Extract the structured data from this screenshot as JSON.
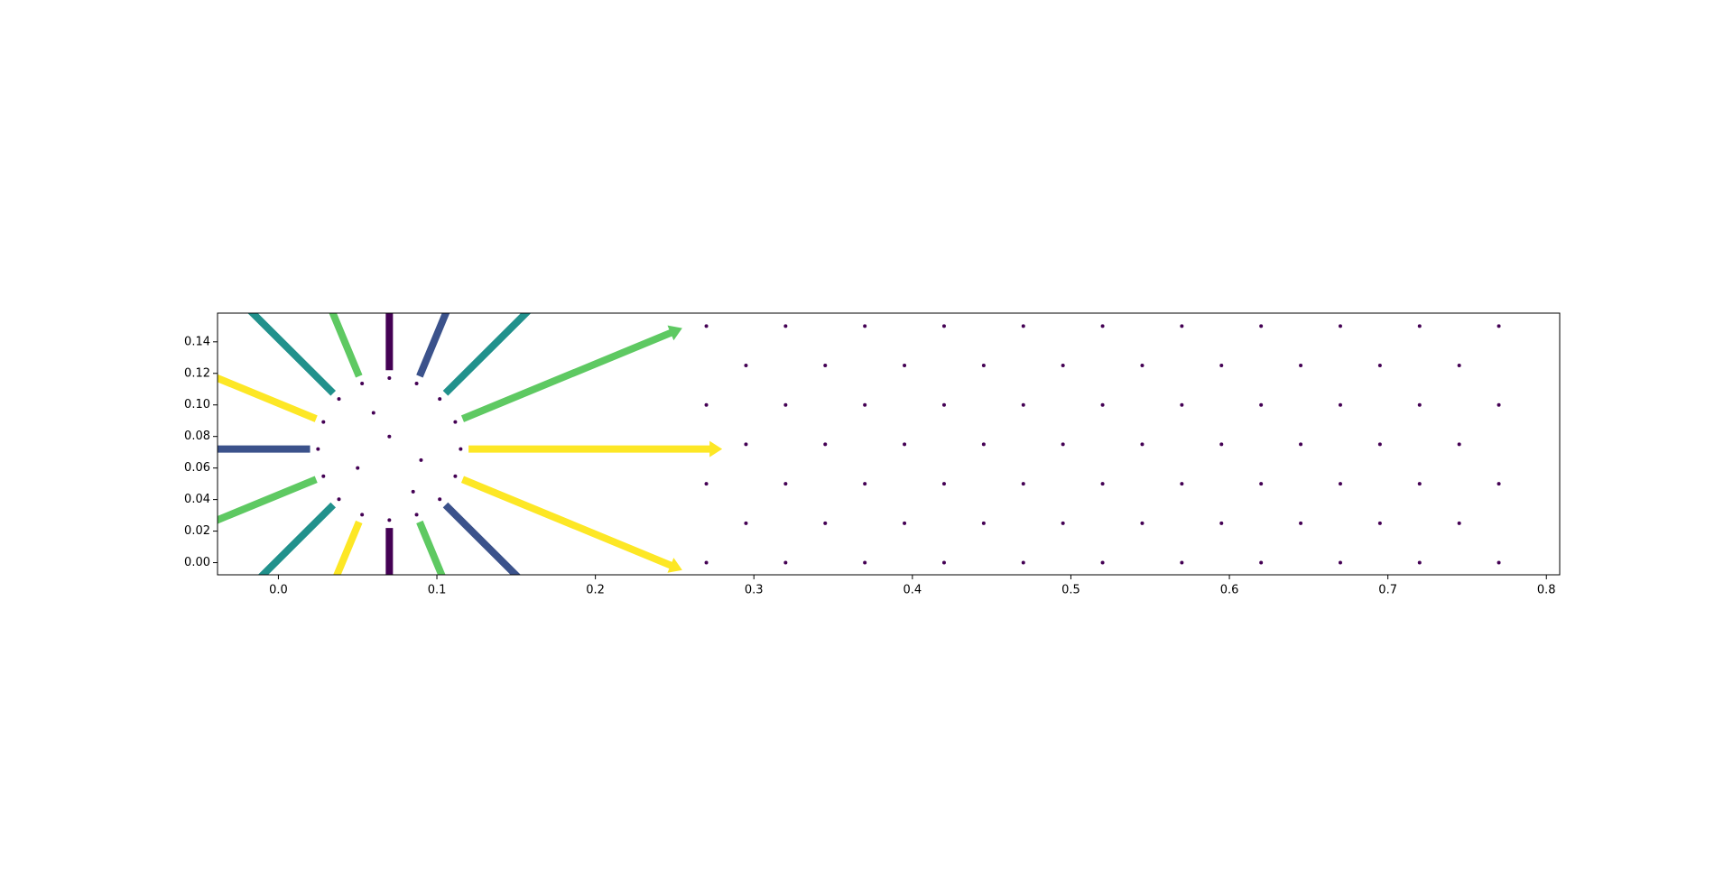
{
  "chart_data": {
    "type": "scatter",
    "color": "#440154",
    "x": [
      0.27,
      0.32,
      0.37,
      0.42,
      0.47,
      0.52,
      0.57,
      0.62,
      0.67,
      0.72,
      0.77,
      0.295,
      0.345,
      0.395,
      0.445,
      0.495,
      0.545,
      0.595,
      0.645,
      0.695,
      0.745,
      0.27,
      0.32,
      0.37,
      0.42,
      0.47,
      0.52,
      0.57,
      0.62,
      0.67,
      0.72,
      0.77,
      0.295,
      0.345,
      0.395,
      0.445,
      0.495,
      0.545,
      0.595,
      0.645,
      0.695,
      0.745,
      0.27,
      0.32,
      0.37,
      0.42,
      0.47,
      0.52,
      0.57,
      0.62,
      0.67,
      0.72,
      0.77,
      0.295,
      0.345,
      0.395,
      0.445,
      0.495,
      0.545,
      0.595,
      0.645,
      0.695,
      0.745,
      0.27,
      0.32,
      0.37,
      0.42,
      0.47,
      0.52,
      0.57,
      0.62,
      0.67,
      0.72,
      0.77,
      0.115,
      0.1116,
      0.1018,
      0.0872,
      0.07,
      0.0528,
      0.0382,
      0.0284,
      0.025,
      0.0284,
      0.0382,
      0.0528,
      0.07,
      0.0872,
      0.1018,
      0.1116,
      0.05,
      0.07,
      0.09,
      0.06,
      0.085
    ],
    "y": [
      0,
      0,
      0,
      0,
      0,
      0,
      0,
      0,
      0,
      0,
      0,
      0.025,
      0.025,
      0.025,
      0.025,
      0.025,
      0.025,
      0.025,
      0.025,
      0.025,
      0.025,
      0.05,
      0.05,
      0.05,
      0.05,
      0.05,
      0.05,
      0.05,
      0.05,
      0.05,
      0.05,
      0.05,
      0.075,
      0.075,
      0.075,
      0.075,
      0.075,
      0.075,
      0.075,
      0.075,
      0.075,
      0.075,
      0.1,
      0.1,
      0.1,
      0.1,
      0.1,
      0.1,
      0.1,
      0.1,
      0.1,
      0.1,
      0.1,
      0.125,
      0.125,
      0.125,
      0.125,
      0.125,
      0.125,
      0.125,
      0.125,
      0.125,
      0.125,
      0.15,
      0.15,
      0.15,
      0.15,
      0.15,
      0.15,
      0.15,
      0.15,
      0.15,
      0.15,
      0.15,
      0.072,
      0.0892,
      0.1038,
      0.1136,
      0.117,
      0.1136,
      0.1038,
      0.0892,
      0.072,
      0.0548,
      0.0402,
      0.0304,
      0.027,
      0.0304,
      0.0402,
      0.0548,
      0.06,
      0.08,
      0.065,
      0.095,
      0.045
    ],
    "quiver": {
      "x": [
        0.12,
        0.1162,
        0.1054,
        0.0891,
        0.07,
        0.0509,
        0.0346,
        0.0238,
        0.02,
        0.0238,
        0.0346,
        0.0509,
        0.07,
        0.0891,
        0.1054,
        0.1162
      ],
      "y": [
        0.072,
        0.0912,
        0.1074,
        0.1182,
        0.122,
        0.1182,
        0.1074,
        0.0912,
        0.072,
        0.0528,
        0.0366,
        0.0258,
        0.022,
        0.0258,
        0.0366,
        0.0528
      ],
      "u": [
        0.16,
        0.1386,
        0.099,
        0.0459,
        0,
        -0.0459,
        -0.0919,
        -0.1109,
        -0.12,
        -0.1109,
        -0.0919,
        -0.0383,
        0,
        0.0459,
        0.099,
        0.1386
      ],
      "v": [
        0,
        0.0575,
        0.099,
        0.1109,
        0.1,
        0.1109,
        0.0919,
        0.0459,
        0,
        -0.0459,
        -0.0919,
        -0.0924,
        -0.1,
        -0.1109,
        -0.099,
        -0.0575
      ],
      "colors": [
        "#fde725",
        "#5ec962",
        "#21918c",
        "#3b528b",
        "#440154",
        "#5ec962",
        "#21918c",
        "#fde725",
        "#3b528b",
        "#5ec962",
        "#21918c",
        "#fde725",
        "#440154",
        "#5ec962",
        "#3b528b",
        "#fde725"
      ]
    },
    "xlim": [
      -0.0384,
      0.8084
    ],
    "ylim": [
      -0.0077,
      0.1582
    ],
    "xticks": [
      {
        "value": 0,
        "label": "0.0"
      },
      0.1,
      0.2,
      0.3,
      0.4,
      0.5,
      0.6,
      0.7,
      0.8
    ],
    "yticks": [
      {
        "value": 0,
        "label": "0.00"
      },
      0.02,
      0.04,
      0.06,
      0.08,
      {
        "value": 0.1,
        "label": "0.10"
      },
      0.12,
      0.14
    ]
  }
}
